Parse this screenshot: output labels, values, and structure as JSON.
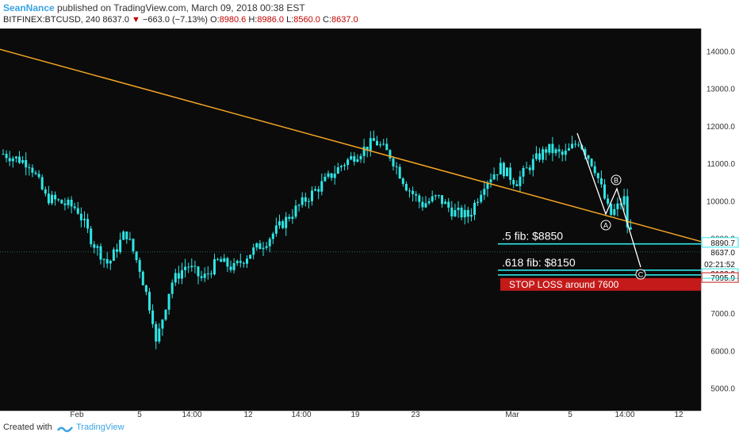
{
  "header": {
    "author": "SeanNance",
    "published_text": "published on TradingView.com, March 09, 2018 00:38 EST",
    "symbol": "BITFINEX:BTCUSD, 240",
    "last": "8637.0",
    "change": "−663.0 (−7.13%)",
    "open_label": "O:",
    "open": "8980.6",
    "high_label": "H:",
    "high": "8986.0",
    "low_label": "L:",
    "low": "8560.0",
    "close_label": "C:",
    "close": "8637.0"
  },
  "footer": {
    "created_with": "Created with",
    "brand": "TradingView"
  },
  "colors": {
    "candle": "#2ee6e6",
    "trendline": "#f5a623",
    "fib_line": "#2ee6e6",
    "stop_box": "#c41a1a",
    "wave": "#ffffff"
  },
  "chart_data": {
    "type": "candlestick",
    "symbol": "BITFINEX:BTCUSD",
    "timeframe": "240",
    "y_axis": {
      "ticks": [
        5000,
        6000,
        7000,
        8000,
        9000,
        10000,
        11000,
        12000,
        13000,
        14000
      ],
      "tick_labels": [
        "5000.0",
        "6000.0",
        "7000.0",
        "8000.0",
        "9000.0",
        "10000.0",
        "11000.0",
        "12000.0",
        "13000.0",
        "14000.0"
      ],
      "ylim": [
        4400,
        14600
      ]
    },
    "x_axis": {
      "tick_labels": [
        "Feb",
        "5",
        "14:00",
        "12",
        "14:00",
        "19",
        "23",
        "Mar",
        "5",
        "14:00",
        "12"
      ]
    },
    "price_path": [
      [
        "Jan 25",
        11500
      ],
      [
        "Jan 26",
        12100
      ],
      [
        "Jan 27",
        11300
      ],
      [
        "Jan 29",
        11000
      ],
      [
        "Jan 30",
        10100
      ],
      [
        "Feb 1",
        9800
      ],
      [
        "Feb 2",
        8900
      ],
      [
        "Feb 3",
        8300
      ],
      [
        "Feb 4",
        9100
      ],
      [
        "Feb 4",
        9300
      ],
      [
        "Feb 5",
        8200
      ],
      [
        "Feb 6",
        6600
      ],
      [
        "Feb 6",
        6100
      ],
      [
        "Feb 7",
        7800
      ],
      [
        "Feb 8",
        8300
      ],
      [
        "Feb 9",
        7900
      ],
      [
        "Feb 10",
        8400
      ],
      [
        "Feb 11",
        8200
      ],
      [
        "Feb 12",
        8600
      ],
      [
        "Feb 13",
        8900
      ],
      [
        "Feb 15",
        9800
      ],
      [
        "Feb 16",
        10200
      ],
      [
        "Feb 18",
        11000
      ],
      [
        "Feb 20",
        11600
      ],
      [
        "Feb 21",
        11200
      ],
      [
        "Feb 22",
        10400
      ],
      [
        "Feb 23",
        9900
      ],
      [
        "Feb 24",
        10100
      ],
      [
        "Feb 25",
        9700
      ],
      [
        "Feb 26",
        9600
      ],
      [
        "Feb 27",
        10500
      ],
      [
        "Feb 28",
        10900
      ],
      [
        "Mar 1",
        10500
      ],
      [
        "Mar 2",
        11000
      ],
      [
        "Mar 3",
        11400
      ],
      [
        "Mar 4",
        11200
      ],
      [
        "Mar 5",
        11600
      ],
      [
        "Mar 6",
        10900
      ],
      [
        "Mar 7",
        9600
      ],
      [
        "Mar 8",
        10100
      ],
      [
        "Mar 8",
        9400
      ],
      [
        "Mar 9",
        8637
      ]
    ],
    "current_price": "8637.0",
    "countdown": "02:21:52",
    "levels": [
      {
        "label": ".5 fib: $8850",
        "price": 8850,
        "tag": "8890.7"
      },
      {
        "label": ".618 fib: $8150",
        "price": 8150,
        "tag": "8122.9"
      }
    ],
    "stop_loss": {
      "label": "STOP LOSS around 7600",
      "price": 7600,
      "tag": "7995.9"
    },
    "trendline": {
      "from": [
        "Jan 24",
        14400
      ],
      "to": [
        "Mar 13",
        8890
      ]
    },
    "wave_labels": [
      {
        "label": "A",
        "point": [
          "Mar 7",
          9550
        ]
      },
      {
        "label": "B",
        "point": [
          "Mar 8",
          10200
        ]
      },
      {
        "label": "C",
        "point": [
          "Mar 9",
          8000
        ]
      }
    ]
  }
}
